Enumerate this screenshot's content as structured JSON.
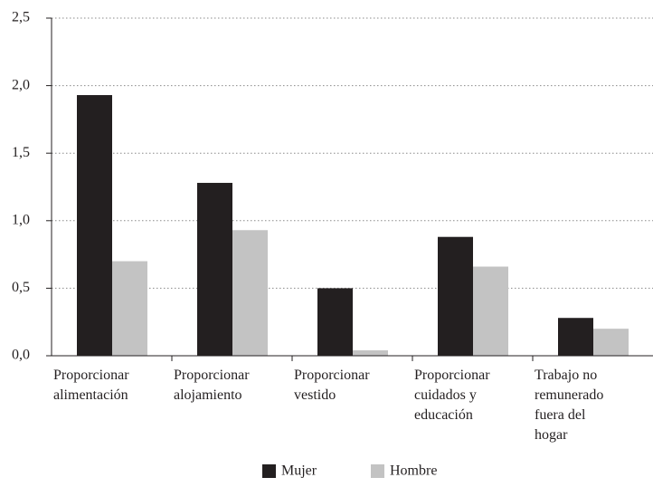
{
  "chart_data": {
    "type": "bar",
    "categories": [
      "Proporcionar\nalimentación",
      "Proporcionar\nalojamiento",
      "Proporcionar\nvestido",
      "Proporcionar\ncuidados y\neducación",
      "Trabajo no\nremunerado\nfuera del\nhogar"
    ],
    "series": [
      {
        "name": "Mujer",
        "color": "#231f20",
        "values": [
          1.93,
          1.28,
          0.5,
          0.88,
          0.28
        ]
      },
      {
        "name": "Hombre",
        "color": "#c3c3c3",
        "values": [
          0.7,
          0.93,
          0.04,
          0.66,
          0.2
        ]
      }
    ],
    "ylim": [
      0,
      2.5
    ],
    "yticks": [
      {
        "value": 0,
        "label": "0,0"
      },
      {
        "value": 0.5,
        "label": "0,5"
      },
      {
        "value": 1,
        "label": "1,0"
      },
      {
        "value": 1.5,
        "label": "1,5"
      },
      {
        "value": 2,
        "label": "2,0"
      },
      {
        "value": 2.5,
        "label": "2,5"
      }
    ],
    "grid": true
  }
}
